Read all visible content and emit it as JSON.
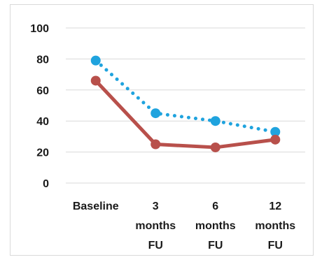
{
  "chart_data": {
    "type": "line",
    "title": "",
    "xlabel": "",
    "ylabel": "",
    "categories": [
      [
        "Baseline"
      ],
      [
        "3",
        "months",
        "FU"
      ],
      [
        "6",
        "months",
        "FU"
      ],
      [
        "12",
        "months",
        "FU"
      ]
    ],
    "ylim": [
      0,
      100
    ],
    "yticks": [
      "0",
      "20",
      "40",
      "60",
      "80",
      "100"
    ],
    "grid": true,
    "legend": "none",
    "series": [
      {
        "values": [
          79,
          45,
          40,
          33
        ],
        "color": "#1fa3de",
        "style": "dotted"
      },
      {
        "values": [
          66,
          25,
          23,
          28
        ],
        "color": "#b8504b",
        "style": "solid"
      }
    ]
  }
}
